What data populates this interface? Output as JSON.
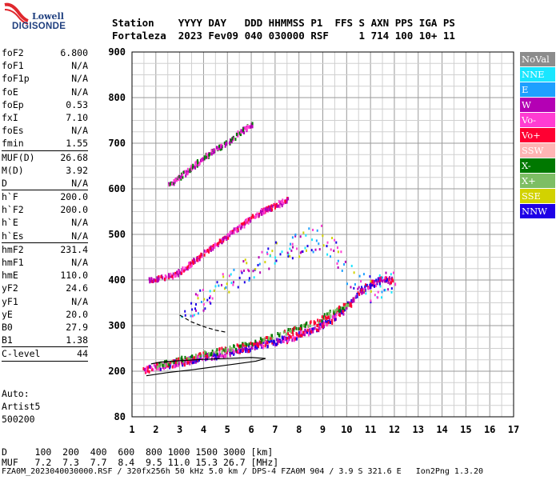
{
  "logo": {
    "line1": "Lowell",
    "line2": "DIGISONDE"
  },
  "header": {
    "row1": "Station    YYYY DAY   DDD HHMMSS P1  FFS S AXN PPS IGA PS",
    "row2": "Fortaleza  2023 Fev09 040 030000 RSF     1 714 100 10+ 11"
  },
  "params": [
    {
      "name": "foF2",
      "value": "6.800"
    },
    {
      "name": "foF1",
      "value": "N/A"
    },
    {
      "name": "foF1p",
      "value": "N/A"
    },
    {
      "name": "foE",
      "value": "N/A"
    },
    {
      "name": "foEp",
      "value": "0.53"
    },
    {
      "name": "fxI",
      "value": "7.10"
    },
    {
      "name": "foEs",
      "value": "N/A"
    },
    {
      "name": "fmin",
      "value": "1.55"
    },
    {
      "sep": true
    },
    {
      "name": "MUF(D)",
      "value": "26.68"
    },
    {
      "name": "M(D)",
      "value": "3.92"
    },
    {
      "name": "D",
      "value": "N/A"
    },
    {
      "sep": true
    },
    {
      "name": "h`F",
      "value": "200.0"
    },
    {
      "name": "h`F2",
      "value": "200.0"
    },
    {
      "name": "h`E",
      "value": "N/A"
    },
    {
      "name": "h`Es",
      "value": "N/A"
    },
    {
      "sep": true
    },
    {
      "name": "hmF2",
      "value": "231.4"
    },
    {
      "name": "hmF1",
      "value": "N/A"
    },
    {
      "name": "hmE",
      "value": "110.0"
    },
    {
      "name": "yF2",
      "value": "24.6"
    },
    {
      "name": "yF1",
      "value": "N/A"
    },
    {
      "name": "yE",
      "value": "20.0"
    },
    {
      "name": "B0",
      "value": "27.9"
    },
    {
      "name": "B1",
      "value": "1.38"
    },
    {
      "sep": true
    },
    {
      "name": "C-level",
      "value": "44"
    },
    {
      "sep": true
    }
  ],
  "autoscaling": {
    "l1": "Auto:",
    "l2": "Artist5",
    "l3": "500200"
  },
  "legend": [
    {
      "label": "NoVal",
      "color": "#8c8c8c"
    },
    {
      "label": "NNE",
      "color": "#19e6ff"
    },
    {
      "label": "E",
      "color": "#1ea0ff"
    },
    {
      "label": "W",
      "color": "#b400b4"
    },
    {
      "label": "Vo-",
      "color": "#ff3cd2"
    },
    {
      "label": "Vo+",
      "color": "#ff0032"
    },
    {
      "label": "SSW",
      "color": "#ffb4b4"
    },
    {
      "label": "X-",
      "color": "#007800"
    },
    {
      "label": "X+",
      "color": "#7dbe64"
    },
    {
      "label": "SSE",
      "color": "#d2d200"
    },
    {
      "label": "NNW",
      "color": "#1e00e6"
    }
  ],
  "footer": {
    "row1": "D     100  200  400  600  800 1000 1500 3000 [km]",
    "row2": "MUF   7.2  7.3  7.7  8.4  9.5 11.0 15.3 26.7 [MHz]",
    "row3": "FZA0M_2023040030000.RSF / 320fx256h 50 kHz 5.0 km / DPS-4 FZA0M 904 / 3.9 S 321.6 E   Ion2Png 1.3.20"
  },
  "chart_data": {
    "type": "scatter",
    "x_ticks": [
      1,
      2,
      3,
      4,
      5,
      6,
      7,
      8,
      9,
      10,
      11,
      12,
      13,
      14,
      15,
      16,
      17
    ],
    "y_ticks": [
      80,
      200,
      300,
      400,
      500,
      600,
      700,
      800,
      900
    ],
    "xlim": [
      1,
      17
    ],
    "ylim": [
      100,
      900
    ],
    "y_axis_bottom_label": "80",
    "grid": true,
    "x_minor_step": 0.5,
    "y_minor_step": 25,
    "traces": [
      {
        "name": "F2 o-trace",
        "points": [
          [
            1.5,
            205
          ],
          [
            2,
            212
          ],
          [
            2.5,
            218
          ],
          [
            3,
            222
          ],
          [
            3.5,
            228
          ],
          [
            4,
            232
          ],
          [
            4.5,
            238
          ],
          [
            5,
            244
          ],
          [
            5.5,
            250
          ],
          [
            6,
            256
          ],
          [
            6.5,
            262
          ],
          [
            7,
            268
          ],
          [
            7.5,
            274
          ],
          [
            8,
            282
          ],
          [
            8.5,
            292
          ],
          [
            9,
            305
          ],
          [
            9.5,
            322
          ],
          [
            10,
            345
          ],
          [
            10.5,
            375
          ],
          [
            11,
            395
          ],
          [
            11.5,
            405
          ],
          [
            12,
            400
          ]
        ],
        "colors": [
          "#ff3cd2",
          "#b400b4",
          "#ff0032",
          "#1e00e6"
        ]
      },
      {
        "name": "F2 x-trace",
        "points": [
          [
            2,
            215
          ],
          [
            3,
            228
          ],
          [
            4,
            240
          ],
          [
            5,
            252
          ],
          [
            6,
            265
          ],
          [
            7,
            280
          ],
          [
            8,
            298
          ],
          [
            9,
            320
          ],
          [
            9.5,
            335
          ],
          [
            10,
            350
          ]
        ],
        "colors": [
          "#007800",
          "#7dbe64",
          "#ff0032"
        ]
      },
      {
        "name": "second hop",
        "points": [
          [
            1.7,
            402
          ],
          [
            2.5,
            410
          ],
          [
            3,
            420
          ],
          [
            3.5,
            440
          ],
          [
            4,
            460
          ],
          [
            4.5,
            480
          ],
          [
            5,
            500
          ],
          [
            5.5,
            520
          ],
          [
            6,
            540
          ],
          [
            6.5,
            555
          ],
          [
            7,
            565
          ],
          [
            7.5,
            580
          ]
        ],
        "colors": [
          "#ff0032",
          "#ff3cd2",
          "#b400b4"
        ]
      },
      {
        "name": "third hop",
        "points": [
          [
            2.5,
            610
          ],
          [
            3,
            630
          ],
          [
            3.5,
            650
          ],
          [
            4,
            670
          ],
          [
            4.5,
            690
          ],
          [
            5,
            705
          ],
          [
            5.5,
            725
          ],
          [
            6,
            745
          ]
        ],
        "colors": [
          "#ff3cd2",
          "#b400b4",
          "#007800"
        ]
      },
      {
        "name": "spread F",
        "points": [
          [
            3,
            330
          ],
          [
            4,
            360
          ],
          [
            5,
            400
          ],
          [
            6,
            430
          ],
          [
            7,
            460
          ],
          [
            8,
            480
          ],
          [
            9,
            500
          ],
          [
            10,
            420
          ],
          [
            11,
            380
          ],
          [
            12,
            400
          ]
        ],
        "colors": [
          "#ff3cd2",
          "#b400b4",
          "#1e00e6",
          "#19e6ff",
          "#d2d200",
          "#1ea0ff"
        ]
      }
    ],
    "profile_line": [
      [
        1.6,
        190
      ],
      [
        2.5,
        197
      ],
      [
        3.5,
        203
      ],
      [
        4.5,
        210
      ],
      [
        5.5,
        217
      ],
      [
        6.2,
        222
      ],
      [
        6.6,
        228
      ],
      [
        6.0,
        230
      ],
      [
        5.0,
        228
      ],
      [
        4.0,
        226
      ],
      [
        3.0,
        223
      ],
      [
        2.2,
        220
      ],
      [
        1.8,
        216
      ]
    ],
    "extrapolated_dashed": [
      [
        3.0,
        323
      ],
      [
        3.5,
        308
      ],
      [
        4.0,
        298
      ],
      [
        4.5,
        290
      ],
      [
        5.0,
        285
      ]
    ]
  }
}
